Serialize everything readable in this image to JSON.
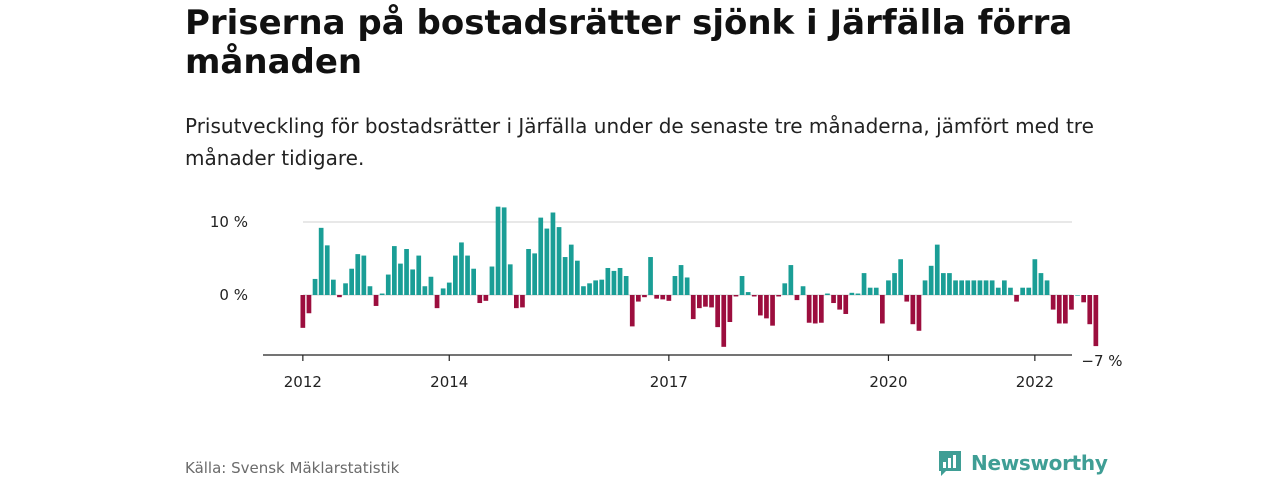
{
  "title": "Priserna på bostadsrätter sjönk i Järfälla förra månaden",
  "subtitle": "Prisutveckling för bostadsrätter i Järfälla under de senaste tre månaderna, jämfört med tre månader tidigare.",
  "source": "Källa: Svensk Mäklarstatistik",
  "brand": {
    "name": "Newsworthy",
    "icon": "newsworthy-logo-icon"
  },
  "colors": {
    "positive": "#1a9e96",
    "negative": "#9c0e3e",
    "grid": "#d9d9d9",
    "axis": "#222222",
    "brand": "#3f9e95"
  },
  "chart_data": {
    "type": "bar",
    "title": "Priserna på bostadsrätter sjönk i Järfälla förra månaden",
    "ylabel": "",
    "xlabel": "",
    "ylim": [
      -8,
      12
    ],
    "y_ticks": [
      {
        "value": 10,
        "label": "10 %"
      },
      {
        "value": 0,
        "label": "0 %"
      }
    ],
    "x_ticks": [
      {
        "value": "2012-01",
        "label": "2012"
      },
      {
        "value": "2014-01",
        "label": "2014"
      },
      {
        "value": "2017-01",
        "label": "2017"
      },
      {
        "value": "2020-01",
        "label": "2020"
      },
      {
        "value": "2022-01",
        "label": "2022"
      }
    ],
    "start_month": "2012-01",
    "annotation": {
      "label": "−7 %",
      "month": "2022-12"
    },
    "grid": true,
    "series": [
      {
        "values": [
          -4.5,
          -2.5,
          2.2,
          9.2,
          6.8,
          2.1,
          -0.3,
          1.6,
          3.6,
          5.6,
          5.4,
          1.2,
          -1.5,
          0.2,
          2.8,
          6.7,
          4.3,
          6.3,
          3.5,
          5.4,
          1.2,
          2.5,
          -1.8,
          0.9,
          1.7,
          5.4,
          7.2,
          5.4,
          3.6,
          -1.1,
          -0.8,
          3.9,
          12.1,
          12.0,
          4.2,
          -1.8,
          -1.7,
          6.3,
          5.7,
          10.6,
          9.1,
          11.3,
          9.3,
          5.2,
          6.9,
          4.7,
          1.2,
          1.6,
          2.0,
          2.1,
          3.7,
          3.3,
          3.7,
          2.6,
          -4.3,
          -0.9,
          -0.3,
          5.2,
          -0.5,
          -0.6,
          -0.8,
          2.6,
          4.1,
          2.4,
          -3.3,
          -1.8,
          -1.6,
          -1.7,
          -4.4,
          -7.1,
          -3.7,
          -0.2,
          2.6,
          0.4,
          -0.2,
          -2.8,
          -3.2,
          -4.2,
          -0.2,
          1.6,
          4.1,
          -0.7,
          1.2,
          -3.8,
          -3.9,
          -3.8,
          0.2,
          -1.1,
          -2.0,
          -2.6,
          0.3,
          0.2,
          3.0,
          1.0,
          1.0,
          -3.9,
          2.0,
          3.0,
          4.9,
          -0.9,
          -4.0,
          -4.9,
          2.0,
          4.0,
          6.9,
          3.0,
          3.0,
          2.0,
          2.0,
          2.0,
          2.0,
          2.0,
          2.0,
          2.0,
          1.0,
          2.0,
          1.0,
          -0.9,
          1.0,
          1.0,
          4.9,
          3.0,
          2.0,
          -2.0,
          -3.9,
          -3.9,
          -2.0,
          0.0,
          -1.0,
          -4.0,
          -7.0
        ]
      }
    ]
  }
}
